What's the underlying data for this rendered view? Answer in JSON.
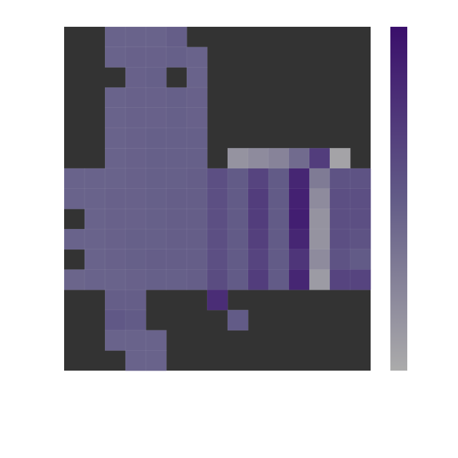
{
  "chart_data": {
    "type": "heatmap",
    "zlim": [
      0,
      1
    ],
    "colormap": [
      [
        0,
        "#3a0f6b"
      ],
      [
        0.5,
        "#625b87"
      ],
      [
        1,
        "#ababab"
      ]
    ],
    "missing_color": "#333333",
    "values": [
      [
        null,
        null,
        0.55,
        0.55,
        0.55,
        0.52,
        null,
        null,
        null,
        null,
        null,
        null,
        null,
        null,
        null
      ],
      [
        null,
        null,
        0.55,
        0.54,
        0.54,
        0.53,
        0.55,
        null,
        null,
        null,
        null,
        null,
        null,
        null,
        null
      ],
      [
        null,
        null,
        null,
        0.54,
        0.53,
        null,
        0.55,
        null,
        null,
        null,
        null,
        null,
        null,
        null,
        null
      ],
      [
        null,
        null,
        0.55,
        0.54,
        0.54,
        0.53,
        0.54,
        null,
        null,
        null,
        null,
        null,
        null,
        null,
        null
      ],
      [
        null,
        null,
        0.55,
        0.54,
        0.54,
        0.53,
        0.54,
        null,
        null,
        null,
        null,
        null,
        null,
        null,
        null
      ],
      [
        null,
        null,
        0.55,
        0.54,
        0.53,
        0.53,
        0.53,
        null,
        null,
        null,
        null,
        null,
        null,
        null,
        null
      ],
      [
        null,
        null,
        0.55,
        0.54,
        0.53,
        0.53,
        0.53,
        null,
        0.85,
        0.8,
        0.75,
        0.6,
        0.3,
        0.95,
        null
      ],
      [
        0.55,
        0.55,
        0.55,
        0.54,
        0.53,
        0.53,
        0.52,
        0.42,
        0.5,
        0.35,
        0.5,
        0.15,
        0.7,
        0.45,
        0.45
      ],
      [
        0.55,
        0.55,
        0.54,
        0.54,
        0.53,
        0.52,
        0.52,
        0.42,
        0.5,
        0.3,
        0.5,
        0.12,
        0.8,
        0.42,
        0.42
      ],
      [
        null,
        0.55,
        0.54,
        0.54,
        0.53,
        0.52,
        0.52,
        0.42,
        0.5,
        0.3,
        0.5,
        0.1,
        0.85,
        0.42,
        0.42
      ],
      [
        0.55,
        0.55,
        0.54,
        0.53,
        0.53,
        0.52,
        0.52,
        0.42,
        0.5,
        0.32,
        0.5,
        0.15,
        0.85,
        0.42,
        0.45
      ],
      [
        null,
        0.55,
        0.54,
        0.53,
        0.52,
        0.52,
        0.52,
        0.42,
        0.5,
        0.35,
        0.5,
        0.25,
        0.8,
        0.45,
        0.5
      ],
      [
        0.56,
        0.55,
        0.55,
        0.54,
        0.53,
        0.53,
        0.52,
        0.4,
        0.5,
        0.3,
        0.5,
        0.15,
        0.9,
        0.35,
        0.35
      ],
      [
        null,
        null,
        0.52,
        0.52,
        null,
        null,
        null,
        0.2,
        null,
        null,
        null,
        null,
        null,
        null,
        null
      ],
      [
        null,
        null,
        0.48,
        0.5,
        null,
        null,
        null,
        null,
        0.5,
        null,
        null,
        null,
        null,
        null,
        null
      ],
      [
        null,
        null,
        0.55,
        0.55,
        0.55,
        null,
        null,
        null,
        null,
        null,
        null,
        null,
        null,
        null,
        null
      ],
      [
        null,
        null,
        null,
        0.55,
        0.55,
        null,
        null,
        null,
        null,
        null,
        null,
        null,
        null,
        null,
        null
      ]
    ]
  }
}
